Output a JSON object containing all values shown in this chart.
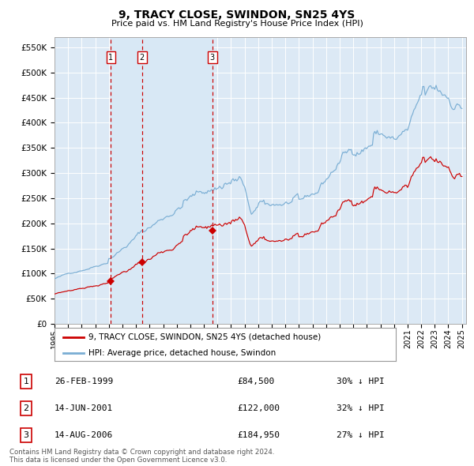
{
  "title": "9, TRACY CLOSE, SWINDON, SN25 4YS",
  "subtitle": "Price paid vs. HM Land Registry's House Price Index (HPI)",
  "ylim": [
    0,
    570000
  ],
  "yticks": [
    0,
    50000,
    100000,
    150000,
    200000,
    250000,
    300000,
    350000,
    400000,
    450000,
    500000,
    550000
  ],
  "background_color": "#ffffff",
  "plot_bg_color": "#dce9f5",
  "grid_color": "#ffffff",
  "hpi_color": "#7aaed4",
  "price_color": "#cc0000",
  "sale_marker_color": "#cc0000",
  "vline_color": "#cc0000",
  "vline_shade_color": "#d8e8f5",
  "sales": [
    {
      "label": "1",
      "date_num": 1999.15,
      "price": 84500,
      "date_str": "26-FEB-1999"
    },
    {
      "label": "2",
      "date_num": 2001.45,
      "price": 122000,
      "date_str": "14-JUN-2001"
    },
    {
      "label": "3",
      "date_num": 2006.62,
      "price": 184950,
      "date_str": "14-AUG-2006"
    }
  ],
  "table_rows": [
    {
      "num": "1",
      "date": "26-FEB-1999",
      "price": "£84,500",
      "pct": "30% ↓ HPI"
    },
    {
      "num": "2",
      "date": "14-JUN-2001",
      "price": "£122,000",
      "pct": "32% ↓ HPI"
    },
    {
      "num": "3",
      "date": "14-AUG-2006",
      "price": "£184,950",
      "pct": "27% ↓ HPI"
    }
  ],
  "legend_line1": "9, TRACY CLOSE, SWINDON, SN25 4YS (detached house)",
  "legend_line2": "HPI: Average price, detached house, Swindon",
  "footer_text": "Contains HM Land Registry data © Crown copyright and database right 2024.\nThis data is licensed under the Open Government Licence v3.0."
}
